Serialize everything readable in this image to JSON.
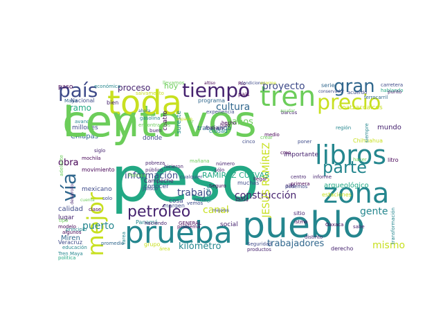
{
  "colors": {
    "purple": "#45226e",
    "indigo": "#3e4a89",
    "blue": "#30678d",
    "teal": "#24868e",
    "green": "#22a884",
    "lime": "#6ccd5a",
    "yellow": "#c8e020",
    "dark": "#440154"
  },
  "words": [
    {
      "text": "centavos"
    },
    {
      "text": "peso"
    },
    {
      "text": "pueblo"
    },
    {
      "text": "prueba"
    },
    {
      "text": "toda"
    },
    {
      "text": "tren"
    },
    {
      "text": "libros"
    },
    {
      "text": "zona"
    },
    {
      "text": "país"
    },
    {
      "text": "tiempo"
    },
    {
      "text": "precio"
    },
    {
      "text": "gran"
    },
    {
      "text": "mejor"
    },
    {
      "text": "vía"
    },
    {
      "text": "parte"
    },
    {
      "text": "petróleo"
    },
    {
      "text": "trabajadores"
    },
    {
      "text": "construcción"
    },
    {
      "text": "proyecto"
    },
    {
      "text": "proceso"
    },
    {
      "text": "cultura"
    },
    {
      "text": "información"
    },
    {
      "text": "obra"
    },
    {
      "text": "gente"
    },
    {
      "text": "canal"
    },
    {
      "text": "puerto"
    },
    {
      "text": "kilómetro"
    },
    {
      "text": "mismo"
    },
    {
      "text": "trabajo"
    },
    {
      "text": "JESÚS RAMÍREZ"
    },
    {
      "text": "RAMÍREZ CUEVAS"
    },
    {
      "text": "hoy"
    },
    {
      "text": "años"
    },
    {
      "text": "tramo"
    },
    {
      "text": "mundo"
    },
    {
      "text": "Chiapas"
    },
    {
      "text": "millones"
    },
    {
      "text": "calidad"
    },
    {
      "text": "lugar"
    },
    {
      "text": "Miren"
    },
    {
      "text": "Veracruz"
    },
    {
      "text": "importante"
    },
    {
      "text": "arqueológico"
    },
    {
      "text": "mexicano"
    },
    {
      "text": "Coatzacoalcos"
    },
    {
      "text": "Chihuahua"
    },
    {
      "text": "paso"
    },
    {
      "text": "Nacional"
    },
    {
      "text": "serie"
    },
    {
      "text": "donde"
    },
    {
      "text": "cuatro"
    },
    {
      "text": "Panamá"
    },
    {
      "text": "movimiento"
    },
    {
      "text": "social"
    },
    {
      "text": "derecho"
    },
    {
      "text": "grupo"
    },
    {
      "text": "centro"
    },
    {
      "text": "alto"
    },
    {
      "text": "sitio"
    },
    {
      "text": "trabajando"
    },
    {
      "text": "programa"
    },
    {
      "text": "sureste"
    },
    {
      "text": "Tren Maya"
    },
    {
      "text": "económica"
    },
    {
      "text": "Río"
    },
    {
      "text": "carretera"
    },
    {
      "text": "hablando"
    },
    {
      "text": "punto"
    },
    {
      "text": "acuerdo"
    },
    {
      "text": "barcos"
    },
    {
      "text": "región"
    },
    {
      "text": "primera"
    },
    {
      "text": "podemos"
    },
    {
      "text": "istmo"
    },
    {
      "text": "Oaxaca"
    },
    {
      "text": "sabe"
    },
    {
      "text": "litro"
    },
    {
      "text": "cosa"
    },
    {
      "text": "Campeche"
    },
    {
      "text": "Jalisco"
    },
    {
      "text": "conocer"
    },
    {
      "text": "margen"
    },
    {
      "text": "GENERAL"
    },
    {
      "text": "haciendo"
    },
    {
      "text": "pobreza"
    },
    {
      "text": "público"
    },
    {
      "text": "cualquier"
    },
    {
      "text": "hicieron"
    },
    {
      "text": "muchas"
    },
    {
      "text": "número"
    },
    {
      "text": "sólo"
    },
    {
      "text": "llegar"
    },
    {
      "text": "Seguridad"
    },
    {
      "text": "productos"
    },
    {
      "text": "educación"
    },
    {
      "text": "política"
    },
    {
      "text": "clase"
    },
    {
      "text": "modelo"
    },
    {
      "text": "siglo"
    },
    {
      "text": "avance"
    },
    {
      "text": "ciudad"
    },
    {
      "text": "informe"
    },
    {
      "text": "transformación"
    },
    {
      "text": "hecho"
    },
    {
      "text": "cinco"
    },
    {
      "text": "crear"
    },
    {
      "text": "creo"
    },
    {
      "text": "salvamento"
    },
    {
      "text": "experiencia"
    },
    {
      "text": "norte"
    },
    {
      "text": "vemos"
    },
    {
      "text": "salud"
    },
    {
      "text": "grande"
    },
    {
      "text": "ferrocarril"
    },
    {
      "text": "distinto"
    },
    {
      "text": "mochila"
    },
    {
      "text": "adelante"
    },
    {
      "text": "desarrollo"
    },
    {
      "text": "mañana"
    },
    {
      "text": "mejores"
    },
    {
      "text": "buen"
    },
    {
      "text": "tipo"
    },
    {
      "text": "solo"
    },
    {
      "text": "tarea"
    },
    {
      "text": "área"
    },
    {
      "text": "siempre"
    },
    {
      "text": "medio"
    },
    {
      "text": "Seguro"
    },
    {
      "text": "problema"
    },
    {
      "text": "trabajar"
    },
    {
      "text": "promedio"
    },
    {
      "text": "principio"
    },
    {
      "text": "algunos"
    },
    {
      "text": "cuenta"
    },
    {
      "text": "estaciones"
    },
    {
      "text": "Pemex"
    },
    {
      "text": "gasolina"
    },
    {
      "text": "bien"
    },
    {
      "text": "pais"
    },
    {
      "text": "ir"
    },
    {
      "text": "hizo"
    },
    {
      "text": "poner"
    },
    {
      "text": "Maya"
    },
    {
      "text": "llevamos"
    },
    {
      "text": "ahora"
    },
    {
      "text": "altiso"
    },
    {
      "text": "condiciones"
    },
    {
      "text": "conservador"
    },
    {
      "text": "enorme"
    },
    {
      "text": "ayudar"
    },
    {
      "text": "espacio"
    },
    {
      "text": "hacer"
    },
    {
      "text": "encontramos"
    },
    {
      "text": "Ley"
    }
  ]
}
